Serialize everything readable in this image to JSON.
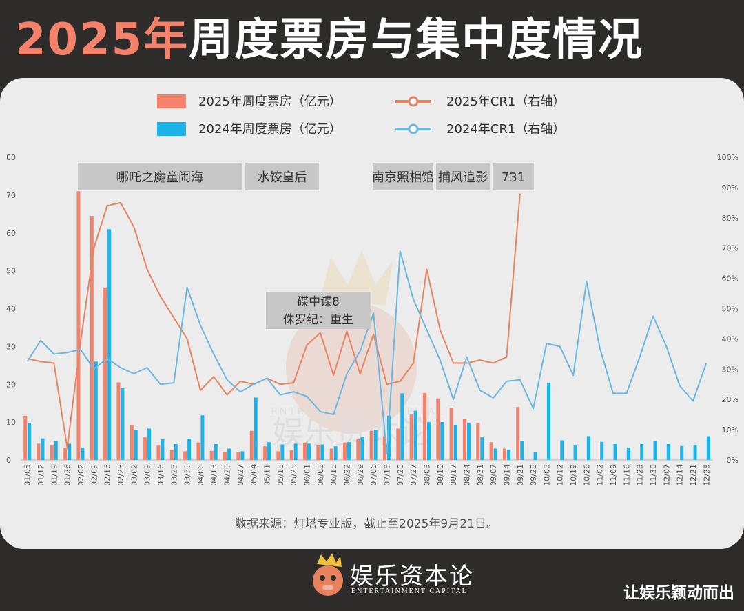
{
  "header": {
    "title_year": "2025年",
    "title_rest": "周度票房与集中度情况"
  },
  "chart_data": {
    "type": "bar",
    "title": "2025年周度票房与集中度情况",
    "categories": [
      "01/05",
      "01/12",
      "01/19",
      "01/26",
      "02/02",
      "02/09",
      "02/16",
      "02/23",
      "03/02",
      "03/09",
      "03/16",
      "03/23",
      "03/30",
      "04/06",
      "04/13",
      "04/20",
      "04/27",
      "05/04",
      "05/11",
      "05/18",
      "05/25",
      "06/01",
      "06/08",
      "06/15",
      "06/22",
      "06/29",
      "07/06",
      "07/13",
      "07/20",
      "07/27",
      "08/03",
      "08/10",
      "08/17",
      "08/24",
      "08/31",
      "09/07",
      "09/14",
      "09/21",
      "09/28",
      "10/05",
      "10/12",
      "10/19",
      "10/26",
      "11/02",
      "11/09",
      "11/16",
      "11/23",
      "11/30",
      "12/07",
      "12/14",
      "12/21",
      "12/28"
    ],
    "ylim": [
      0,
      80
    ],
    "yticks": [
      "0",
      "10",
      "20",
      "30",
      "40",
      "50",
      "60",
      "70",
      "80"
    ],
    "y2lim": [
      0,
      100
    ],
    "y2ticks": [
      "0%",
      "10%",
      "20%",
      "30%",
      "40%",
      "50%",
      "60%",
      "70%",
      "80%",
      "90%",
      "100%"
    ],
    "grid": false,
    "legend_position": "top",
    "series": [
      {
        "name": "2025年周度票房（亿元）",
        "kind": "bar",
        "axis": "left",
        "color": "#f4826a",
        "values": [
          11.7,
          4.3,
          3.8,
          3.2,
          71,
          64.5,
          45.6,
          20.5,
          9.3,
          6,
          3.8,
          2.7,
          2.3,
          4.6,
          2.4,
          2.2,
          2.1,
          7.7,
          3.6,
          2.3,
          2.6,
          4.6,
          3.9,
          3,
          4.6,
          5.5,
          7.7,
          6.3,
          8.3,
          12,
          17.7,
          16.2,
          13.8,
          10.8,
          9.8,
          4.7,
          3,
          14,
          null,
          null,
          null,
          null,
          null,
          null,
          null,
          null,
          null,
          null,
          null,
          null,
          null,
          null
        ]
      },
      {
        "name": "2024年周度票房（亿元）",
        "kind": "bar",
        "axis": "left",
        "color": "#1bb4ea",
        "values": [
          9.8,
          5.7,
          5,
          4.3,
          3.3,
          26,
          61,
          19,
          8,
          8.3,
          5.5,
          4.2,
          5.6,
          11.8,
          4.2,
          3,
          2.3,
          16.5,
          4.7,
          4.1,
          4.3,
          4.3,
          4.1,
          3.6,
          4.7,
          6,
          8,
          11.7,
          17.6,
          13,
          10,
          10,
          9.3,
          9.8,
          6,
          3,
          2.7,
          5,
          2,
          20.4,
          5.2,
          3.8,
          6.3,
          4.8,
          4.2,
          3.3,
          4.2,
          5,
          4.2,
          3.7,
          3.8,
          6.3
        ]
      },
      {
        "name": "2025年CR1（右轴）",
        "kind": "line",
        "axis": "right",
        "color": "#e8825e",
        "values": [
          33.5,
          32.5,
          32,
          4,
          39,
          70,
          84,
          85,
          77,
          63,
          54,
          47,
          40,
          23,
          27.5,
          21.5,
          26,
          25,
          27,
          25,
          25.5,
          38,
          42,
          28,
          42.5,
          28.5,
          41.5,
          25,
          26,
          32,
          63,
          43,
          32,
          32,
          33,
          32,
          34,
          88,
          null,
          null,
          null,
          null,
          null,
          null,
          null,
          null,
          null,
          null,
          null,
          null,
          null,
          null
        ]
      },
      {
        "name": "2024年CR1（右轴）",
        "kind": "line",
        "axis": "right",
        "color": "#6bb7e0",
        "values": [
          32.5,
          39.5,
          35,
          35.5,
          36.5,
          30,
          33.5,
          30.5,
          28.5,
          30.5,
          25,
          25.5,
          57,
          44.5,
          35,
          26.5,
          22.5,
          25,
          27,
          21.5,
          22.5,
          21,
          16,
          15,
          28.5,
          36,
          48.5,
          2,
          69,
          53,
          43,
          33,
          20,
          34,
          23,
          20.5,
          26,
          26.5,
          17,
          38.5,
          37.5,
          28,
          59,
          37,
          22,
          22,
          34,
          47.5,
          37.5,
          24.5,
          19.5,
          32
        ]
      }
    ],
    "annotations": [
      {
        "text": "哪吒之魔童闹海",
        "position": "top-left"
      },
      {
        "text": "水饺皇后",
        "position": "top"
      },
      {
        "text": "南京照相馆",
        "position": "top-center"
      },
      {
        "text": "捕风追影",
        "position": "top-center"
      },
      {
        "text": "731",
        "position": "top-center"
      },
      {
        "text": "碟中谍8",
        "position": "middle"
      },
      {
        "text": "侏罗纪：重生",
        "position": "middle"
      }
    ],
    "source_note": "数据来源：灯塔专业版，截止至2025年9月21日。"
  },
  "watermark": {
    "cn": "娱乐资本论",
    "en": "ENTERTAINMENT CAPITAL"
  },
  "footer": {
    "brand_cn": "娱乐资本论",
    "brand_en": "ENTERTAINMENT CAPITAL",
    "slogan": "让娱乐颖动而出"
  }
}
